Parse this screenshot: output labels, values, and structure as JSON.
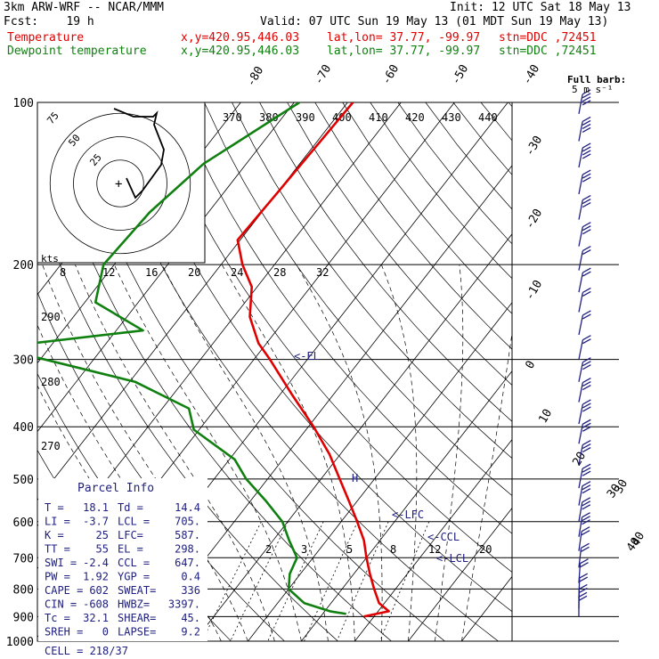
{
  "header": {
    "line1_left": "3km ARW-WRF -- NCAR/MMM",
    "line1_right": "Init: 12 UTC Sat 18 May 13",
    "line2_left": "Fcst:    19 h",
    "line2_right": "Valid: 07 UTC Sun 19 May 13 (01 MDT Sun 19 May 13)",
    "temp_label": "Temperature",
    "dew_label": "Dewpoint temperature",
    "xy": "x,y=420.95,446.03",
    "latlon": "lat,lon= 37.77, -99.97",
    "stn": "stn=DDC ,72451"
  },
  "colors": {
    "temperature": "#e00000",
    "dewpoint": "#108010",
    "wind": "#202080",
    "parcel_text": "#202080"
  },
  "chart_data": {
    "type": "line",
    "title": "",
    "ylabel": "",
    "y_axis": "pressure (hPa), log scale, inverted",
    "pressure_ticks": [
      100,
      200,
      300,
      400,
      500,
      600,
      700,
      800,
      900,
      1000
    ],
    "isotherm_labels": [
      "-80",
      "-70",
      "-60",
      "-50",
      "-40",
      "-30",
      "-20",
      "-10",
      "0",
      "10",
      "20",
      "30",
      "40"
    ],
    "theta_e_labels": [
      "370",
      "380",
      "390",
      "400",
      "410",
      "420",
      "430",
      "440"
    ],
    "mixing_ratio_labels": [
      "2",
      "3",
      "5",
      "8",
      "12",
      "20"
    ],
    "theta_labels": [
      "290",
      "280",
      "270"
    ],
    "series": [
      {
        "name": "Temperature",
        "points": [
          [
            100,
            -59
          ],
          [
            150,
            -60
          ],
          [
            180,
            -60.5
          ],
          [
            200,
            -56
          ],
          [
            220,
            -51
          ],
          [
            250,
            -47
          ],
          [
            280,
            -41.5
          ],
          [
            300,
            -37
          ],
          [
            350,
            -27.5
          ],
          [
            400,
            -19
          ],
          [
            450,
            -12
          ],
          [
            500,
            -6.5
          ],
          [
            550,
            -1.5
          ],
          [
            600,
            3
          ],
          [
            650,
            7
          ],
          [
            700,
            10
          ],
          [
            750,
            13
          ],
          [
            800,
            16
          ],
          [
            850,
            19
          ],
          [
            880,
            22
          ],
          [
            890,
            20
          ],
          [
            900,
            18.1
          ]
        ]
      },
      {
        "name": "Dewpoint temperature",
        "points": [
          [
            100,
            -69
          ],
          [
            130,
            -78
          ],
          [
            160,
            -81
          ],
          [
            200,
            -82
          ],
          [
            235,
            -78
          ],
          [
            265,
            -65
          ],
          [
            285,
            -90
          ],
          [
            330,
            -59
          ],
          [
            370,
            -45
          ],
          [
            405,
            -41
          ],
          [
            460,
            -29
          ],
          [
            500,
            -24
          ],
          [
            550,
            -17
          ],
          [
            600,
            -11
          ],
          [
            650,
            -7
          ],
          [
            700,
            -3
          ],
          [
            750,
            -2
          ],
          [
            800,
            0
          ],
          [
            850,
            5
          ],
          [
            880,
            11
          ],
          [
            890,
            14.4
          ]
        ]
      }
    ],
    "wind_barbs": {
      "full_barb_label": "Full barb:",
      "full_barb_value": "5 m s⁻¹",
      "levels": [
        {
          "p": 105,
          "speed": 20,
          "dir": 290
        },
        {
          "p": 118,
          "speed": 20,
          "dir": 290
        },
        {
          "p": 132,
          "speed": 20,
          "dir": 285
        },
        {
          "p": 148,
          "speed": 15,
          "dir": 285
        },
        {
          "p": 165,
          "speed": 15,
          "dir": 285
        },
        {
          "p": 185,
          "speed": 15,
          "dir": 280
        },
        {
          "p": 205,
          "speed": 12,
          "dir": 280
        },
        {
          "p": 225,
          "speed": 12,
          "dir": 275
        },
        {
          "p": 245,
          "speed": 10,
          "dir": 275
        },
        {
          "p": 270,
          "speed": 10,
          "dir": 270
        },
        {
          "p": 300,
          "speed": 12,
          "dir": 270
        },
        {
          "p": 330,
          "speed": 15,
          "dir": 270
        },
        {
          "p": 360,
          "speed": 15,
          "dir": 265
        },
        {
          "p": 395,
          "speed": 15,
          "dir": 265
        },
        {
          "p": 430,
          "speed": 15,
          "dir": 260
        },
        {
          "p": 470,
          "speed": 15,
          "dir": 255
        },
        {
          "p": 520,
          "speed": 15,
          "dir": 250
        },
        {
          "p": 560,
          "speed": 15,
          "dir": 245
        },
        {
          "p": 600,
          "speed": 15,
          "dir": 240
        },
        {
          "p": 640,
          "speed": 15,
          "dir": 235
        },
        {
          "p": 680,
          "speed": 12,
          "dir": 225
        },
        {
          "p": 730,
          "speed": 12,
          "dir": 215
        },
        {
          "p": 780,
          "speed": 12,
          "dir": 200
        },
        {
          "p": 830,
          "speed": 10,
          "dir": 190
        },
        {
          "p": 870,
          "speed": 10,
          "dir": 185
        },
        {
          "p": 900,
          "speed": 10,
          "dir": 180
        }
      ],
      "speed_rings": [
        "30",
        "40"
      ]
    },
    "hodograph": {
      "units_label": "kts",
      "x_ticks": [
        "8",
        "12",
        "16",
        "20",
        "24",
        "28",
        "32"
      ],
      "ring_labels": [
        "75",
        "50",
        "25"
      ]
    },
    "parcel_markers": [
      "EL",
      "LFC",
      "CCL",
      "LCL"
    ]
  },
  "parcel_info": {
    "title": "Parcel Info",
    "rows": [
      [
        "T   =",
        "18.1",
        "Td =",
        "14.4"
      ],
      [
        "LI  =",
        "-3.7",
        "LCL =",
        "705."
      ],
      [
        "K   =",
        "25",
        "LFC=",
        "587."
      ],
      [
        "TT  =",
        "55",
        "EL =",
        "298."
      ],
      [
        "SWI =",
        "-2.4",
        "CCL =",
        "647."
      ],
      [
        "PW  =",
        "1.92",
        "YGP =",
        "0.4"
      ],
      [
        "CAPE =",
        "602",
        "SWEAT=",
        "336"
      ],
      [
        "CIN =",
        "-608",
        "HWBZ=",
        "3397."
      ],
      [
        "Tc =",
        "32.1",
        "SHEAR=",
        "45."
      ],
      [
        "SREH =",
        "0",
        "LAPSE=",
        "9.2"
      ]
    ],
    "cell": "CELL = 218/37"
  }
}
